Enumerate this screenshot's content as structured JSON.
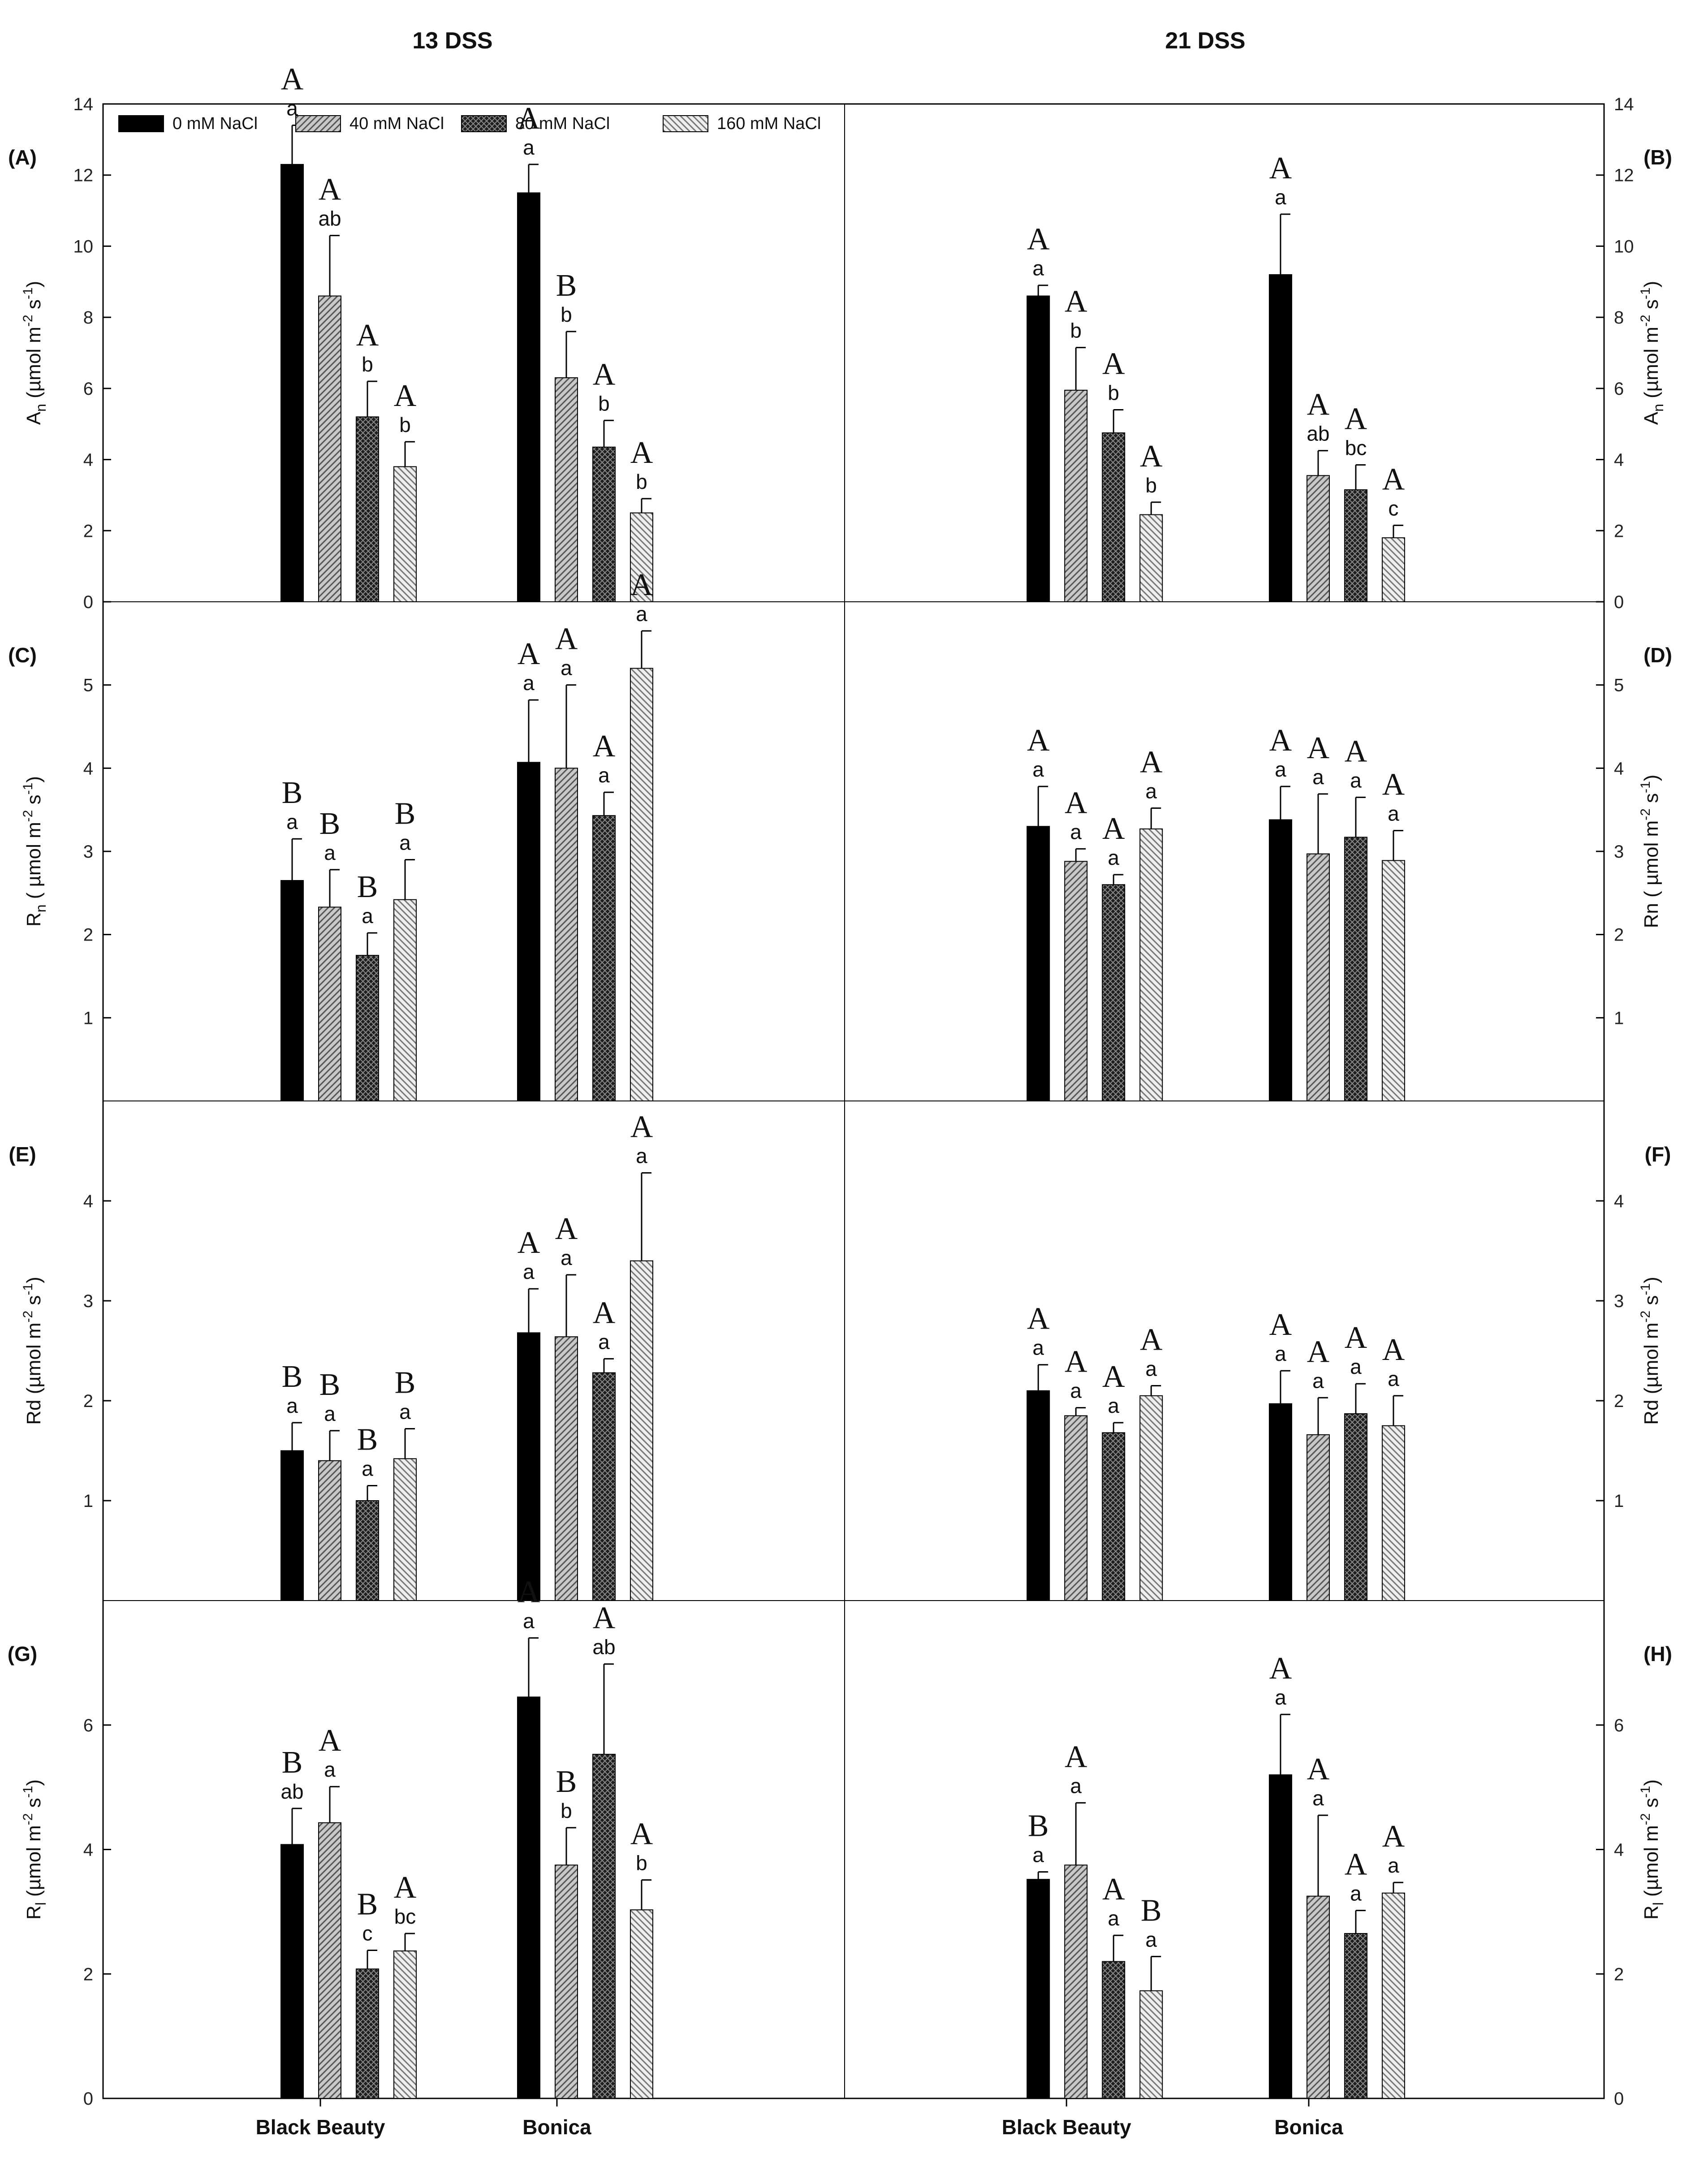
{
  "chart_data": {
    "type": "bar",
    "columns": [
      "13 DSS",
      "21 DSS"
    ],
    "categories": [
      "Black Beauty",
      "Bonica"
    ],
    "legend": {
      "placement": "top-left",
      "entries": [
        "0 mM NaCl",
        "40 mM NaCl",
        "80 mM NaCl",
        "160 mM NaCl"
      ]
    },
    "series_styles": [
      {
        "name": "0 mM NaCl",
        "fill": "#000000",
        "pattern": "solid"
      },
      {
        "name": "40 mM NaCl",
        "fill": "#bdbdbd",
        "pattern": "diag-up"
      },
      {
        "name": "80 mM NaCl",
        "fill": "#2e2e2e",
        "pattern": "crosshatch"
      },
      {
        "name": "160 mM NaCl",
        "fill": "#e4e4e4",
        "pattern": "diag-down"
      }
    ],
    "panels": [
      {
        "id": "A",
        "label": "(A)",
        "column": "13 DSS",
        "row": 0,
        "ylabel_main": "A",
        "ylabel_sub": "n",
        "ylabel_rest": " (µmol m",
        "ylim": [
          0,
          14
        ],
        "yticks": [
          0,
          2,
          4,
          6,
          8,
          10,
          12,
          14
        ],
        "axis_side": "left",
        "groups": [
          {
            "category": "Black Beauty",
            "values": [
              12.3,
              8.6,
              5.2,
              3.8
            ],
            "errors": [
              1.1,
              1.7,
              1.0,
              0.7
            ],
            "lower": [
              "a",
              "ab",
              "b",
              "b"
            ],
            "upper": [
              "A",
              "A",
              "A",
              "A"
            ]
          },
          {
            "category": "Bonica",
            "values": [
              11.5,
              6.3,
              4.35,
              2.5
            ],
            "errors": [
              0.8,
              1.3,
              0.75,
              0.4
            ],
            "lower": [
              "a",
              "b",
              "b",
              "b"
            ],
            "upper": [
              "A",
              "B",
              "A",
              "A"
            ]
          }
        ]
      },
      {
        "id": "B",
        "label": "(B)",
        "column": "21 DSS",
        "row": 0,
        "ylabel_main": "A",
        "ylabel_sub": "n",
        "ylabel_rest": " (µmol m",
        "ylim": [
          0,
          14
        ],
        "yticks": [
          0,
          2,
          4,
          6,
          8,
          10,
          12,
          14
        ],
        "axis_side": "right",
        "groups": [
          {
            "category": "Black Beauty",
            "values": [
              8.6,
              5.95,
              4.75,
              2.45
            ],
            "errors": [
              0.3,
              1.2,
              0.65,
              0.35
            ],
            "lower": [
              "a",
              "b",
              "b",
              "b"
            ],
            "upper": [
              "A",
              "A",
              "A",
              "A"
            ]
          },
          {
            "category": "Bonica",
            "values": [
              9.2,
              3.55,
              3.15,
              1.8
            ],
            "errors": [
              1.7,
              0.7,
              0.7,
              0.35
            ],
            "lower": [
              "a",
              "ab",
              "bc",
              "c"
            ],
            "upper": [
              "A",
              "A",
              "A",
              "A"
            ]
          }
        ]
      },
      {
        "id": "C",
        "label": "(C)",
        "column": "13 DSS",
        "row": 1,
        "ylabel_main": "R",
        "ylabel_sub": "n",
        "ylabel_rest": " ( µmol m",
        "ylim": [
          0,
          6
        ],
        "yticks": [
          1,
          2,
          3,
          4,
          5
        ],
        "axis_side": "left",
        "groups": [
          {
            "category": "Black Beauty",
            "values": [
              2.65,
              2.33,
              1.75,
              2.42
            ],
            "errors": [
              0.5,
              0.45,
              0.27,
              0.48
            ],
            "lower": [
              "a",
              "a",
              "a",
              "a"
            ],
            "upper": [
              "B",
              "B",
              "B",
              "B"
            ]
          },
          {
            "category": "Bonica",
            "values": [
              4.07,
              4.0,
              3.43,
              5.2
            ],
            "errors": [
              0.75,
              1.0,
              0.28,
              0.45
            ],
            "lower": [
              "a",
              "a",
              "a",
              "a"
            ],
            "upper": [
              "A",
              "A",
              "A",
              "A"
            ]
          }
        ]
      },
      {
        "id": "D",
        "label": "(D)",
        "column": "21 DSS",
        "row": 1,
        "ylabel_main": "Rn",
        "ylabel_sub": "",
        "ylabel_rest": " ( µmol m",
        "ylim": [
          0,
          6
        ],
        "yticks": [
          1,
          2,
          3,
          4,
          5
        ],
        "axis_side": "right",
        "groups": [
          {
            "category": "Black Beauty",
            "values": [
              3.3,
              2.88,
              2.6,
              3.27
            ],
            "errors": [
              0.48,
              0.15,
              0.12,
              0.25
            ],
            "lower": [
              "a",
              "a",
              "a",
              "a"
            ],
            "upper": [
              "A",
              "A",
              "A",
              "A"
            ]
          },
          {
            "category": "Bonica",
            "values": [
              3.38,
              2.97,
              3.17,
              2.89
            ],
            "errors": [
              0.4,
              0.72,
              0.48,
              0.36
            ],
            "lower": [
              "a",
              "a",
              "a",
              "a"
            ],
            "upper": [
              "A",
              "A",
              "A",
              "A"
            ]
          }
        ]
      },
      {
        "id": "E",
        "label": "(E)",
        "column": "13 DSS",
        "row": 2,
        "ylabel_main": "Rd",
        "ylabel_sub": "",
        "ylabel_rest": " (µmol m",
        "ylim": [
          0,
          5
        ],
        "yticks": [
          1,
          2,
          3,
          4
        ],
        "axis_side": "left",
        "groups": [
          {
            "category": "Black Beauty",
            "values": [
              1.5,
              1.4,
              1.0,
              1.42
            ],
            "errors": [
              0.28,
              0.3,
              0.15,
              0.3
            ],
            "lower": [
              "a",
              "a",
              "a",
              "a"
            ],
            "upper": [
              "B",
              "B",
              "B",
              "B"
            ]
          },
          {
            "category": "Bonica",
            "values": [
              2.68,
              2.64,
              2.28,
              3.4
            ],
            "errors": [
              0.44,
              0.62,
              0.14,
              0.88
            ],
            "lower": [
              "a",
              "a",
              "a",
              "a"
            ],
            "upper": [
              "A",
              "A",
              "A",
              "A"
            ]
          }
        ]
      },
      {
        "id": "F",
        "label": "(F)",
        "column": "21 DSS",
        "row": 2,
        "ylabel_main": "Rd",
        "ylabel_sub": "",
        "ylabel_rest": " (µmol m",
        "ylim": [
          0,
          5
        ],
        "yticks": [
          1,
          2,
          3,
          4
        ],
        "axis_side": "right",
        "groups": [
          {
            "category": "Black Beauty",
            "values": [
              2.1,
              1.85,
              1.68,
              2.05
            ],
            "errors": [
              0.26,
              0.08,
              0.1,
              0.1
            ],
            "lower": [
              "a",
              "a",
              "a",
              "a"
            ],
            "upper": [
              "A",
              "A",
              "A",
              "A"
            ]
          },
          {
            "category": "Bonica",
            "values": [
              1.97,
              1.66,
              1.87,
              1.75
            ],
            "errors": [
              0.33,
              0.37,
              0.3,
              0.3
            ],
            "lower": [
              "a",
              "a",
              "a",
              "a"
            ],
            "upper": [
              "A",
              "A",
              "A",
              "A"
            ]
          }
        ]
      },
      {
        "id": "G",
        "label": "(G)",
        "column": "13 DSS",
        "row": 3,
        "ylabel_main": "R",
        "ylabel_sub": "l",
        "ylabel_rest": " (µmol m",
        "ylim": [
          0,
          8
        ],
        "yticks": [
          0,
          2,
          4,
          6
        ],
        "axis_side": "left",
        "groups": [
          {
            "category": "Black Beauty",
            "values": [
              4.08,
              4.43,
              2.08,
              2.37
            ],
            "errors": [
              0.58,
              0.58,
              0.3,
              0.28
            ],
            "lower": [
              "ab",
              "a",
              "c",
              "bc"
            ],
            "upper": [
              "B",
              "A",
              "B",
              "A"
            ]
          },
          {
            "category": "Bonica",
            "values": [
              6.45,
              3.75,
              5.53,
              3.03
            ],
            "errors": [
              0.95,
              0.6,
              1.45,
              0.48
            ],
            "lower": [
              "a",
              "b",
              "ab",
              "b"
            ],
            "upper": [
              "A",
              "B",
              "A",
              "A"
            ]
          }
        ]
      },
      {
        "id": "H",
        "label": "(H)",
        "column": "21 DSS",
        "row": 3,
        "ylabel_main": "R",
        "ylabel_sub": "l",
        "ylabel_rest": " (µmol m",
        "ylim": [
          0,
          8
        ],
        "yticks": [
          0,
          2,
          4,
          6
        ],
        "axis_side": "right",
        "groups": [
          {
            "category": "Black Beauty",
            "values": [
              3.52,
              3.75,
              2.2,
              1.73
            ],
            "errors": [
              0.12,
              1.0,
              0.42,
              0.55
            ],
            "lower": [
              "a",
              "a",
              "a",
              "a"
            ],
            "upper": [
              "B",
              "A",
              "A",
              "B"
            ]
          },
          {
            "category": "Bonica",
            "values": [
              5.2,
              3.25,
              2.65,
              3.3
            ],
            "errors": [
              0.97,
              1.3,
              0.37,
              0.17
            ],
            "lower": [
              "a",
              "a",
              "a",
              "a"
            ],
            "upper": [
              "A",
              "A",
              "A",
              "A"
            ]
          }
        ]
      }
    ],
    "units_tail": {
      "m_exp": "-2",
      "s": " s",
      "s_exp": "-1",
      "close": ")"
    }
  }
}
